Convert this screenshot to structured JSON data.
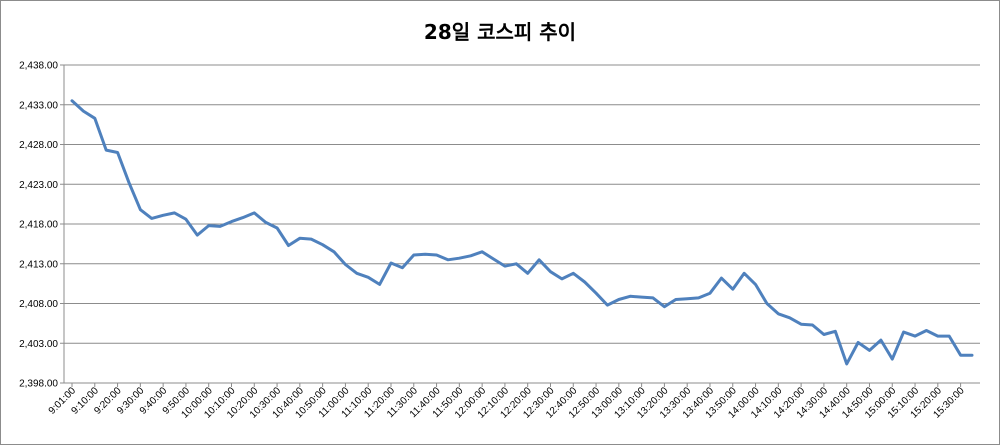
{
  "chart_data": {
    "type": "line",
    "title": "28일 코스피 추이",
    "xlabel": "",
    "ylabel": "",
    "ylim": [
      2398,
      2438
    ],
    "yticks": [
      "2,398.00",
      "2,403.00",
      "2,408.00",
      "2,413.00",
      "2,418.00",
      "2,423.00",
      "2,428.00",
      "2,433.00",
      "2,438.00"
    ],
    "xtick_labels": [
      "9:01:00",
      "9:10:00",
      "9:20:00",
      "9:30:00",
      "9:40:00",
      "9:50:00",
      "10:00:00",
      "10:10:00",
      "10:20:00",
      "10:30:00",
      "10:40:00",
      "10:50:00",
      "11:00:00",
      "11:10:00",
      "11:20:00",
      "11:30:00",
      "11:40:00",
      "11:50:00",
      "12:00:00",
      "12:10:00",
      "12:20:00",
      "12:30:00",
      "12:40:00",
      "12:50:00",
      "13:00:00",
      "13:10:00",
      "13:20:00",
      "13:30:00",
      "13:40:00",
      "13:50:00",
      "14:00:00",
      "14:10:00",
      "14:20:00",
      "14:30:00",
      "14:40:00",
      "14:50:00",
      "15:00:00",
      "15:10:00",
      "15:20:00",
      "15:30:00"
    ],
    "grid": true,
    "series": [
      {
        "color": "#4f81bd",
        "values": [
          2433.5,
          2432.2,
          2431.3,
          2427.3,
          2427.0,
          2423.2,
          2419.8,
          2418.7,
          2419.1,
          2419.4,
          2418.6,
          2416.6,
          2417.8,
          2417.7,
          2418.3,
          2418.8,
          2419.4,
          2418.2,
          2417.5,
          2415.3,
          2416.2,
          2416.1,
          2415.4,
          2414.5,
          2412.9,
          2411.8,
          2411.3,
          2410.4,
          2413.1,
          2412.5,
          2414.1,
          2414.2,
          2414.1,
          2413.5,
          2413.7,
          2414.0,
          2414.5,
          2413.6,
          2412.7,
          2413.0,
          2411.8,
          2413.5,
          2412.0,
          2411.1,
          2411.8,
          2410.7,
          2409.3,
          2407.8,
          2408.5,
          2408.9,
          2408.8,
          2408.7,
          2407.6,
          2408.5,
          2408.6,
          2408.7,
          2409.3,
          2411.2,
          2409.8,
          2411.8,
          2410.4,
          2408.0,
          2406.7,
          2406.2,
          2405.4,
          2405.3,
          2404.1,
          2404.5,
          2400.4,
          2403.1,
          2402.1,
          2403.4,
          2401.0,
          2404.4,
          2403.9,
          2404.6,
          2403.9,
          2403.9,
          2401.5,
          2401.5
        ]
      }
    ]
  }
}
